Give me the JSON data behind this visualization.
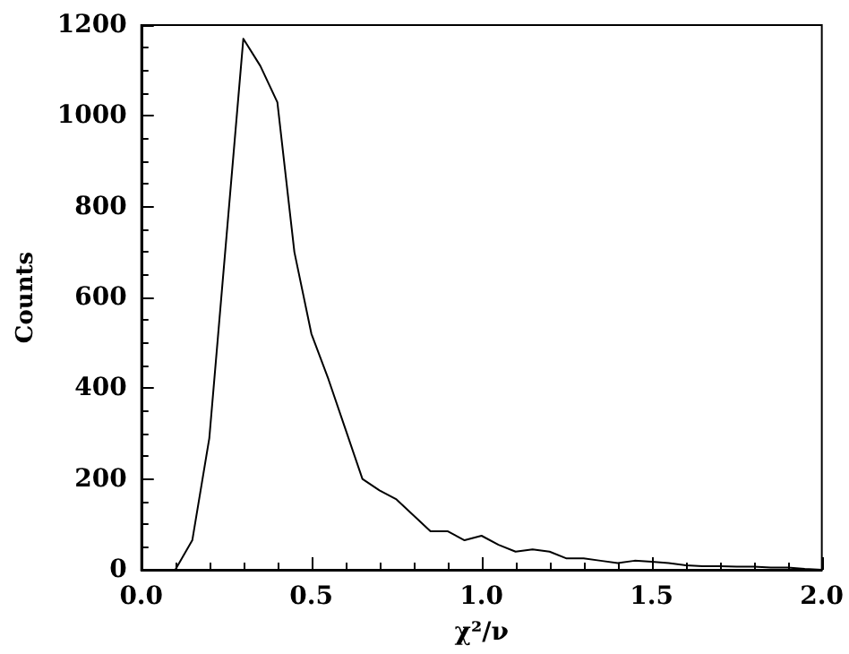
{
  "chart_data": {
    "type": "line",
    "xlabel": "χ²/ν",
    "ylabel": "Counts",
    "x": [
      0.05,
      0.1,
      0.15,
      0.2,
      0.3,
      0.35,
      0.4,
      0.45,
      0.5,
      0.55,
      0.6,
      0.65,
      0.7,
      0.75,
      0.8,
      0.85,
      0.9,
      0.95,
      1.0,
      1.05,
      1.1,
      1.15,
      1.2,
      1.25,
      1.3,
      1.35,
      1.4,
      1.45,
      1.5,
      1.55,
      1.6,
      1.65,
      1.7,
      1.75,
      1.8,
      1.85,
      1.9,
      1.95,
      2.0
    ],
    "series": [
      {
        "color": "#000000",
        "values": [
          0,
          0,
          65,
          290,
          1170,
          1110,
          1030,
          700,
          520,
          420,
          310,
          200,
          175,
          155,
          120,
          85,
          85,
          65,
          75,
          55,
          40,
          45,
          40,
          25,
          25,
          20,
          15,
          20,
          18,
          15,
          10,
          8,
          8,
          7,
          7,
          5,
          5,
          2,
          0
        ]
      }
    ],
    "xlim": [
      0,
      2
    ],
    "xticks": [
      {
        "value": 0,
        "label": "0.0"
      },
      {
        "value": 0.5,
        "label": "0.5"
      },
      {
        "value": 1,
        "label": "1.0"
      },
      {
        "value": 1.5,
        "label": "1.5"
      },
      {
        "value": 2,
        "label": "2.0"
      }
    ],
    "ylim": [
      0,
      1200
    ],
    "yticks": [
      0,
      200,
      400,
      600,
      800,
      1000,
      1200
    ],
    "grid": false,
    "marker": "none",
    "line_style": "solid"
  }
}
